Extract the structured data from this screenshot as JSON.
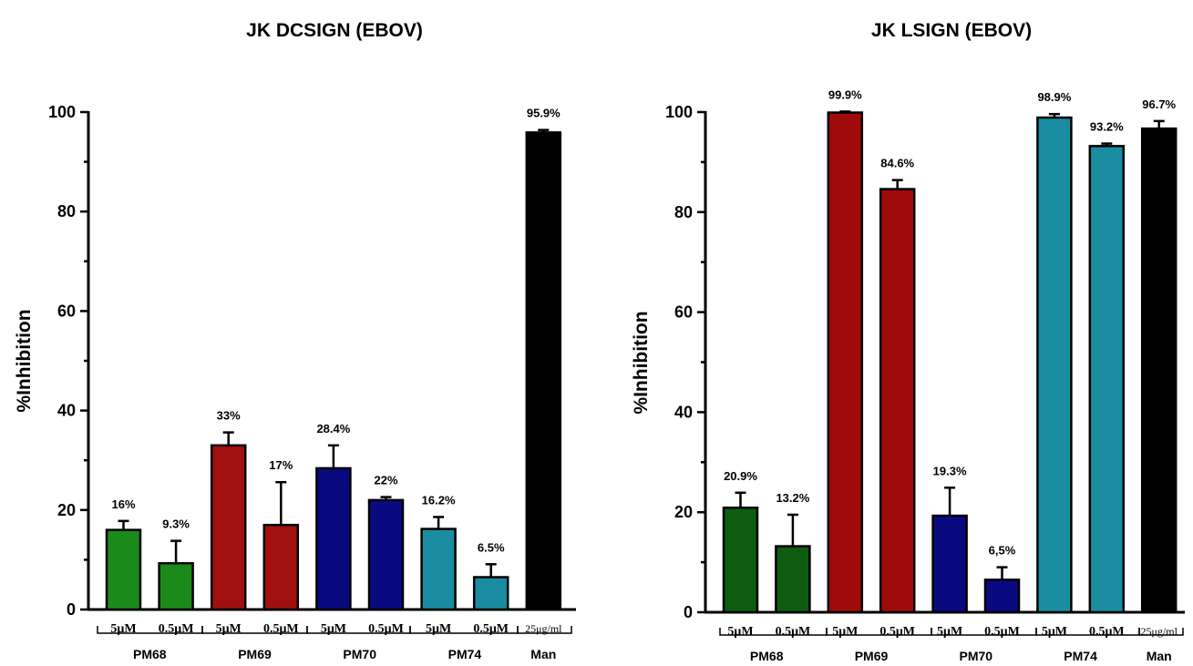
{
  "chart_data": [
    {
      "type": "bar",
      "title": "JK DCSIGN (EBOV)",
      "ylabel": "%Inhibition",
      "ylim": [
        0,
        100
      ],
      "yticks": [
        "0",
        "20",
        "40",
        "60",
        "80",
        "100"
      ],
      "categories": [
        "5μM",
        "0.5μM",
        "5μM",
        "0.5μM",
        "5μM",
        "0.5μM",
        "5μM",
        "0.5μM",
        "25μg/ml"
      ],
      "values": [
        16,
        9.3,
        33,
        17,
        28.4,
        22,
        16.2,
        6.5,
        95.9
      ],
      "errors": [
        1.8,
        4.5,
        2.6,
        8.6,
        4.6,
        0.6,
        2.4,
        2.6,
        0.5
      ],
      "data_labels": [
        "16%",
        "9.3%",
        "33%",
        "17%",
        "28.4%",
        "22%",
        "16.2%",
        "6.5%",
        "95.9%"
      ],
      "groups": [
        {
          "name": "PM68",
          "bars": [
            0,
            1
          ]
        },
        {
          "name": "PM69",
          "bars": [
            2,
            3
          ]
        },
        {
          "name": "PM70",
          "bars": [
            4,
            5
          ]
        },
        {
          "name": "PM74",
          "bars": [
            6,
            7
          ]
        },
        {
          "name": "Man",
          "bars": [
            8
          ]
        }
      ],
      "colors": [
        "#1a8a1a",
        "#1a8a1a",
        "#a01010",
        "#a01010",
        "#0a0a80",
        "#0a0a80",
        "#1a8ca0",
        "#1a8ca0",
        "#000000"
      ]
    },
    {
      "type": "bar",
      "title": "JK LSIGN (EBOV)",
      "ylabel": "%Inhibition",
      "ylim": [
        0,
        100
      ],
      "yticks": [
        "0",
        "20",
        "40",
        "60",
        "80",
        "100"
      ],
      "categories": [
        "5μM",
        "0.5μM",
        "5μM",
        "0.5μM",
        "5μM",
        "0.5μM",
        "5μM",
        "0.5μM",
        "25μg/ml"
      ],
      "values": [
        20.9,
        13.2,
        99.9,
        84.6,
        19.3,
        6.5,
        98.9,
        93.2,
        96.7
      ],
      "errors": [
        3.0,
        6.3,
        0.2,
        1.8,
        5.6,
        2.5,
        0.7,
        0.5,
        1.5
      ],
      "data_labels": [
        "20.9%",
        "13.2%",
        "99.9%",
        "84.6%",
        "19.3%",
        "6,5%",
        "98.9%",
        "93.2%",
        "96.7%"
      ],
      "groups": [
        {
          "name": "PM68",
          "bars": [
            0,
            1
          ]
        },
        {
          "name": "PM69",
          "bars": [
            2,
            3
          ]
        },
        {
          "name": "PM70",
          "bars": [
            4,
            5
          ]
        },
        {
          "name": "PM74",
          "bars": [
            6,
            7
          ]
        },
        {
          "name": "Man",
          "bars": [
            8
          ]
        }
      ],
      "colors": [
        "#0e5c12",
        "#0e5c12",
        "#a00a0a",
        "#a00a0a",
        "#0a0a80",
        "#0a0a80",
        "#1a8ca0",
        "#1a8ca0",
        "#000000"
      ]
    }
  ]
}
